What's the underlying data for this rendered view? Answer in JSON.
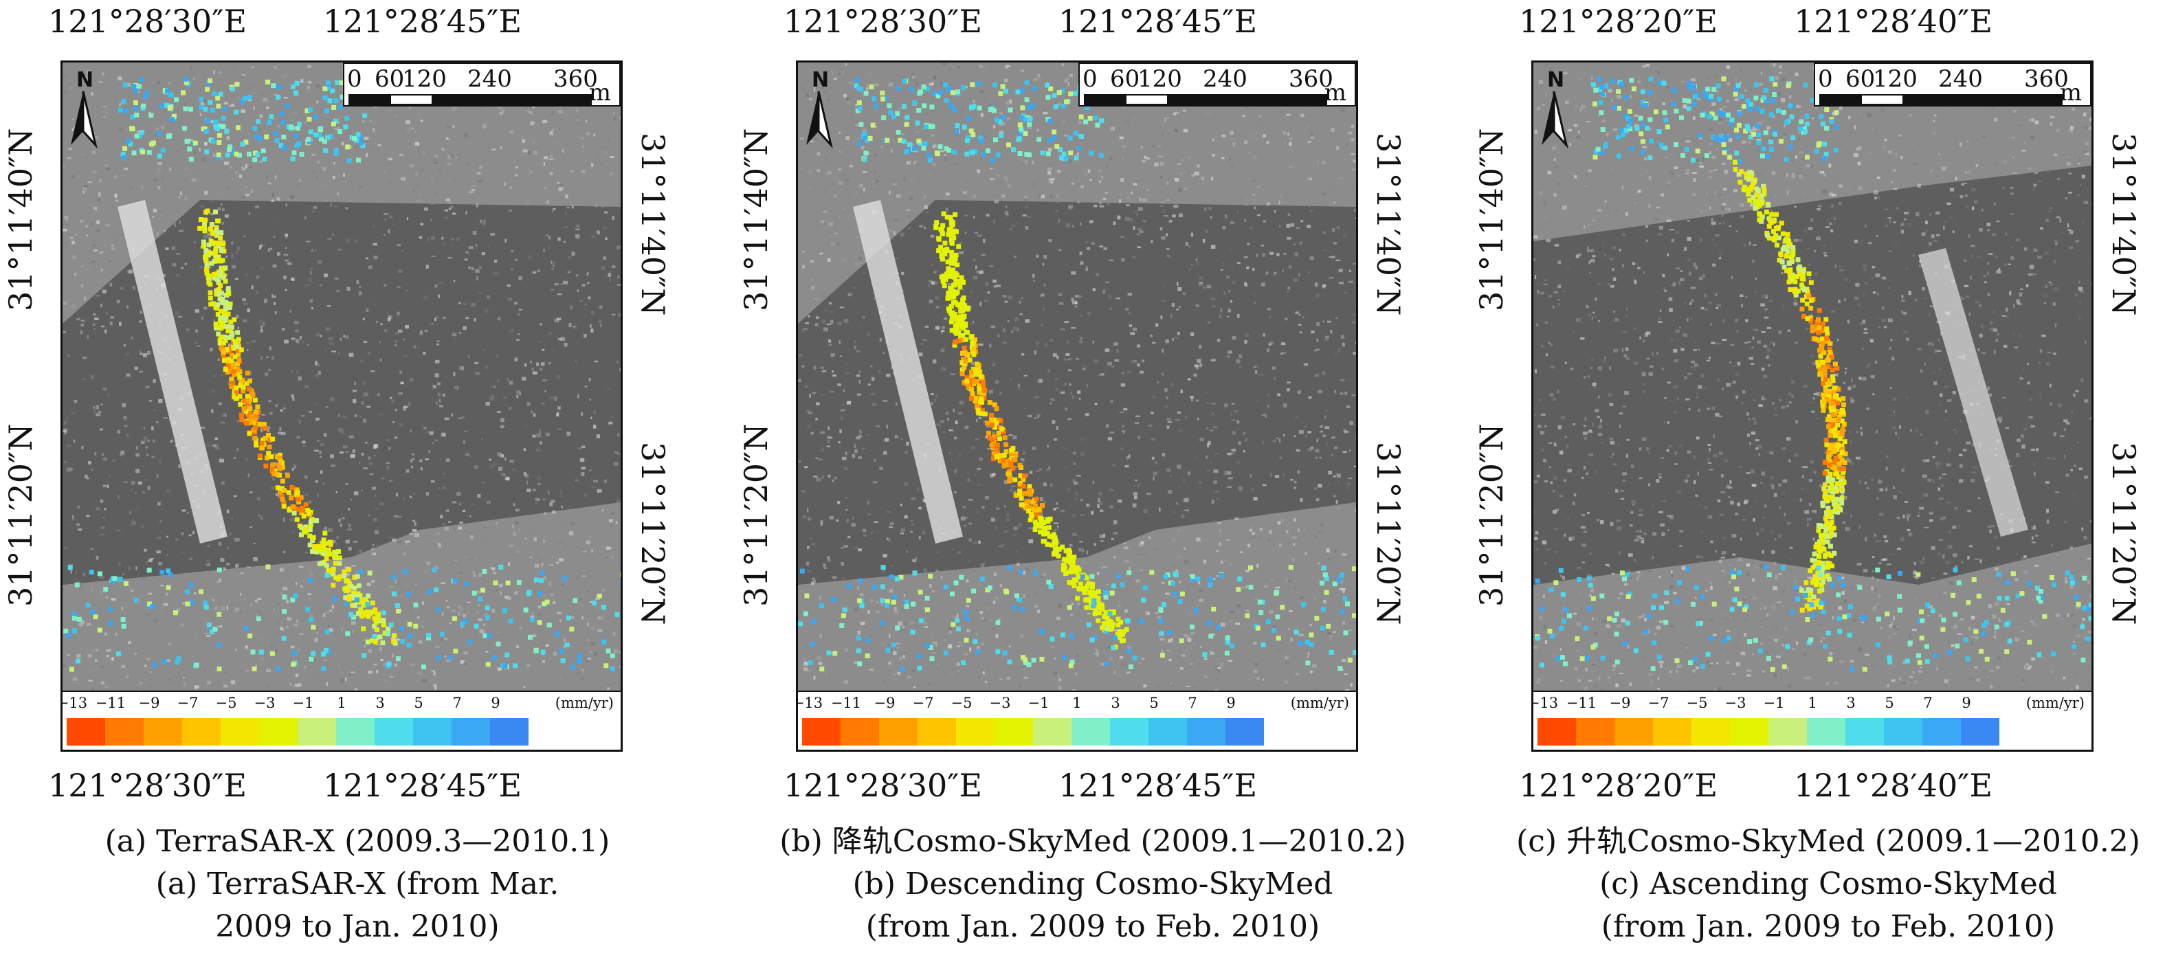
{
  "panels": [
    {
      "lon_top": [
        "121°28′30″E",
        "121°28′45″E"
      ],
      "lon_bottom": [
        "121°28′30″E",
        "121°28′45″E"
      ],
      "lat_left": [
        "31°11′40″N",
        "31°11′20″N"
      ],
      "lat_right": [
        "31°11′40″N",
        "31°11′20″N"
      ],
      "caption": [
        "(a) TerraSAR-X (2009.3—2010.1)",
        "(a) TerraSAR-X (from Mar.",
        "2009 to Jan. 2010)"
      ]
    },
    {
      "lon_top": [
        "121°28′30″E",
        "121°28′45″E"
      ],
      "lon_bottom": [
        "121°28′30″E",
        "121°28′45″E"
      ],
      "lat_left": [
        "31°11′40″N",
        "31°11′20″N"
      ],
      "lat_right": [
        "31°11′40″N",
        "31°11′20″N"
      ],
      "caption": [
        "(b) 降轨Cosmo-SkyMed (2009.1—2010.2)",
        "(b) Descending Cosmo-SkyMed",
        "(from Jan. 2009 to Feb. 2010)"
      ]
    },
    {
      "lon_top": [
        "121°28′20″E",
        "121°28′40″E"
      ],
      "lon_bottom": [
        "121°28′20″E",
        "121°28′40″E"
      ],
      "lat_left": [
        "31°11′40″N",
        "31°11′20″N"
      ],
      "lat_right": [
        "31°11′40″N",
        "31°11′20″N"
      ],
      "caption": [
        "(c) 升轨Cosmo-SkyMed (2009.1—2010.2)",
        "(c) Ascending Cosmo-SkyMed",
        "(from Jan. 2009 to Feb. 2010)"
      ]
    }
  ],
  "scale_bar": {
    "labels": [
      "0",
      "60",
      "120",
      "240",
      "360"
    ],
    "unit": "m"
  },
  "north_arrow": {
    "letter": "N",
    "icon": "north-arrow-icon"
  },
  "colorbar": {
    "ticks": [
      "−13",
      "−11",
      "−9",
      "−7",
      "−5",
      "−3",
      "−1",
      "1",
      "3",
      "5",
      "7",
      "9"
    ],
    "unit": "(mm/yr)",
    "colors": [
      "#ff4a00",
      "#ff7a00",
      "#ffa000",
      "#ffc400",
      "#f3e600",
      "#e2f200",
      "#c8f07a",
      "#7ff0c8",
      "#4fdcec",
      "#3ec4f0",
      "#3aa8f4",
      "#3a88f2"
    ]
  }
}
